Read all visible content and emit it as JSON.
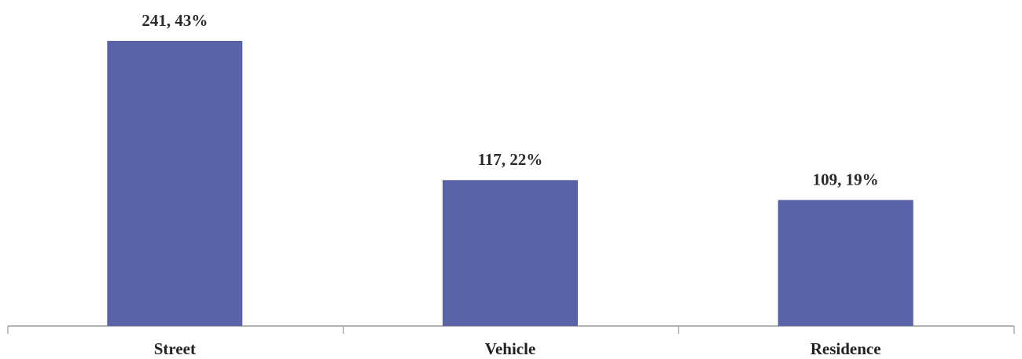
{
  "chart_data": {
    "type": "bar",
    "categories": [
      "Street",
      "Vehicle",
      "Residence"
    ],
    "values": [
      43,
      22,
      19
    ],
    "value_labels": [
      "241, 43%",
      "117, 22%",
      "109, 19%"
    ],
    "color": "#5a62a8"
  }
}
